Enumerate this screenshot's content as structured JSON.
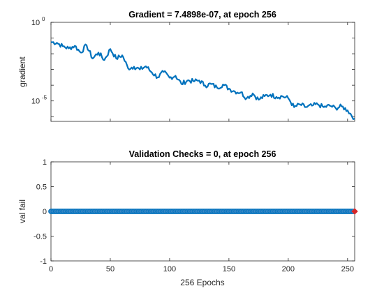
{
  "colors": {
    "line": "#0072BD",
    "marker_fill": "#4d8fc8",
    "last_point": "#d62728",
    "axes": "#262626"
  },
  "chart_data": [
    {
      "type": "line",
      "title": "Gradient = 7.4898e-07, at epoch 256",
      "xlabel": "",
      "ylabel": "gradient",
      "yscale": "log",
      "xlim": [
        0,
        256
      ],
      "ylim": [
        5e-07,
        1
      ],
      "ytick_labels": [
        {
          "base": "10",
          "exp": "0",
          "value": 1
        },
        {
          "base": "10",
          "exp": "-5",
          "value": 1e-05
        }
      ],
      "series": [
        {
          "x": [
            0,
            5,
            10,
            15,
            20,
            25,
            30,
            35,
            40,
            45,
            50,
            55,
            60,
            65,
            70,
            75,
            80,
            85,
            90,
            95,
            100,
            105,
            110,
            115,
            120,
            125,
            130,
            135,
            140,
            145,
            150,
            155,
            160,
            165,
            170,
            175,
            180,
            185,
            190,
            195,
            200,
            205,
            210,
            215,
            220,
            225,
            230,
            235,
            240,
            245,
            250,
            256
          ],
          "y": [
            0.055,
            0.05,
            0.03,
            0.022,
            0.032,
            0.012,
            0.035,
            0.005,
            0.012,
            0.004,
            0.02,
            0.005,
            0.008,
            0.0012,
            0.0015,
            0.001,
            0.0016,
            0.00065,
            0.00032,
            0.0007,
            0.0003,
            0.0004,
            0.00012,
            0.0002,
            0.00018,
            0.0002,
            9.5e-05,
            0.00012,
            7e-05,
            0.00011,
            6e-05,
            4e-05,
            3.5e-05,
            1.5e-05,
            3e-05,
            1.2e-05,
            2e-05,
            2.5e-05,
            1.8e-05,
            2e-05,
            1.5e-05,
            4e-06,
            6e-06,
            4e-06,
            5e-06,
            6e-06,
            4e-06,
            5e-06,
            3.5e-06,
            4.5e-06,
            2.5e-06,
            7.5e-07
          ]
        }
      ]
    },
    {
      "type": "scatter",
      "title": "Validation Checks = 0, at epoch 256",
      "xlabel": "256 Epochs",
      "ylabel": "val fail",
      "xlim": [
        0,
        256
      ],
      "ylim": [
        -1,
        1
      ],
      "xticks": [
        0,
        50,
        100,
        150,
        200,
        250
      ],
      "xtick_labels": [
        "0",
        "50",
        "100",
        "150",
        "200",
        "250"
      ],
      "yticks": [
        1,
        0.5,
        0,
        -0.5,
        -1
      ],
      "ytick_labels": [
        "1",
        "0.5",
        "0",
        "-0.5",
        "-1"
      ],
      "series": [
        {
          "x_start": 0,
          "x_end": 256,
          "y": 0
        }
      ],
      "highlight_point": {
        "x": 256,
        "y": 0
      }
    }
  ]
}
